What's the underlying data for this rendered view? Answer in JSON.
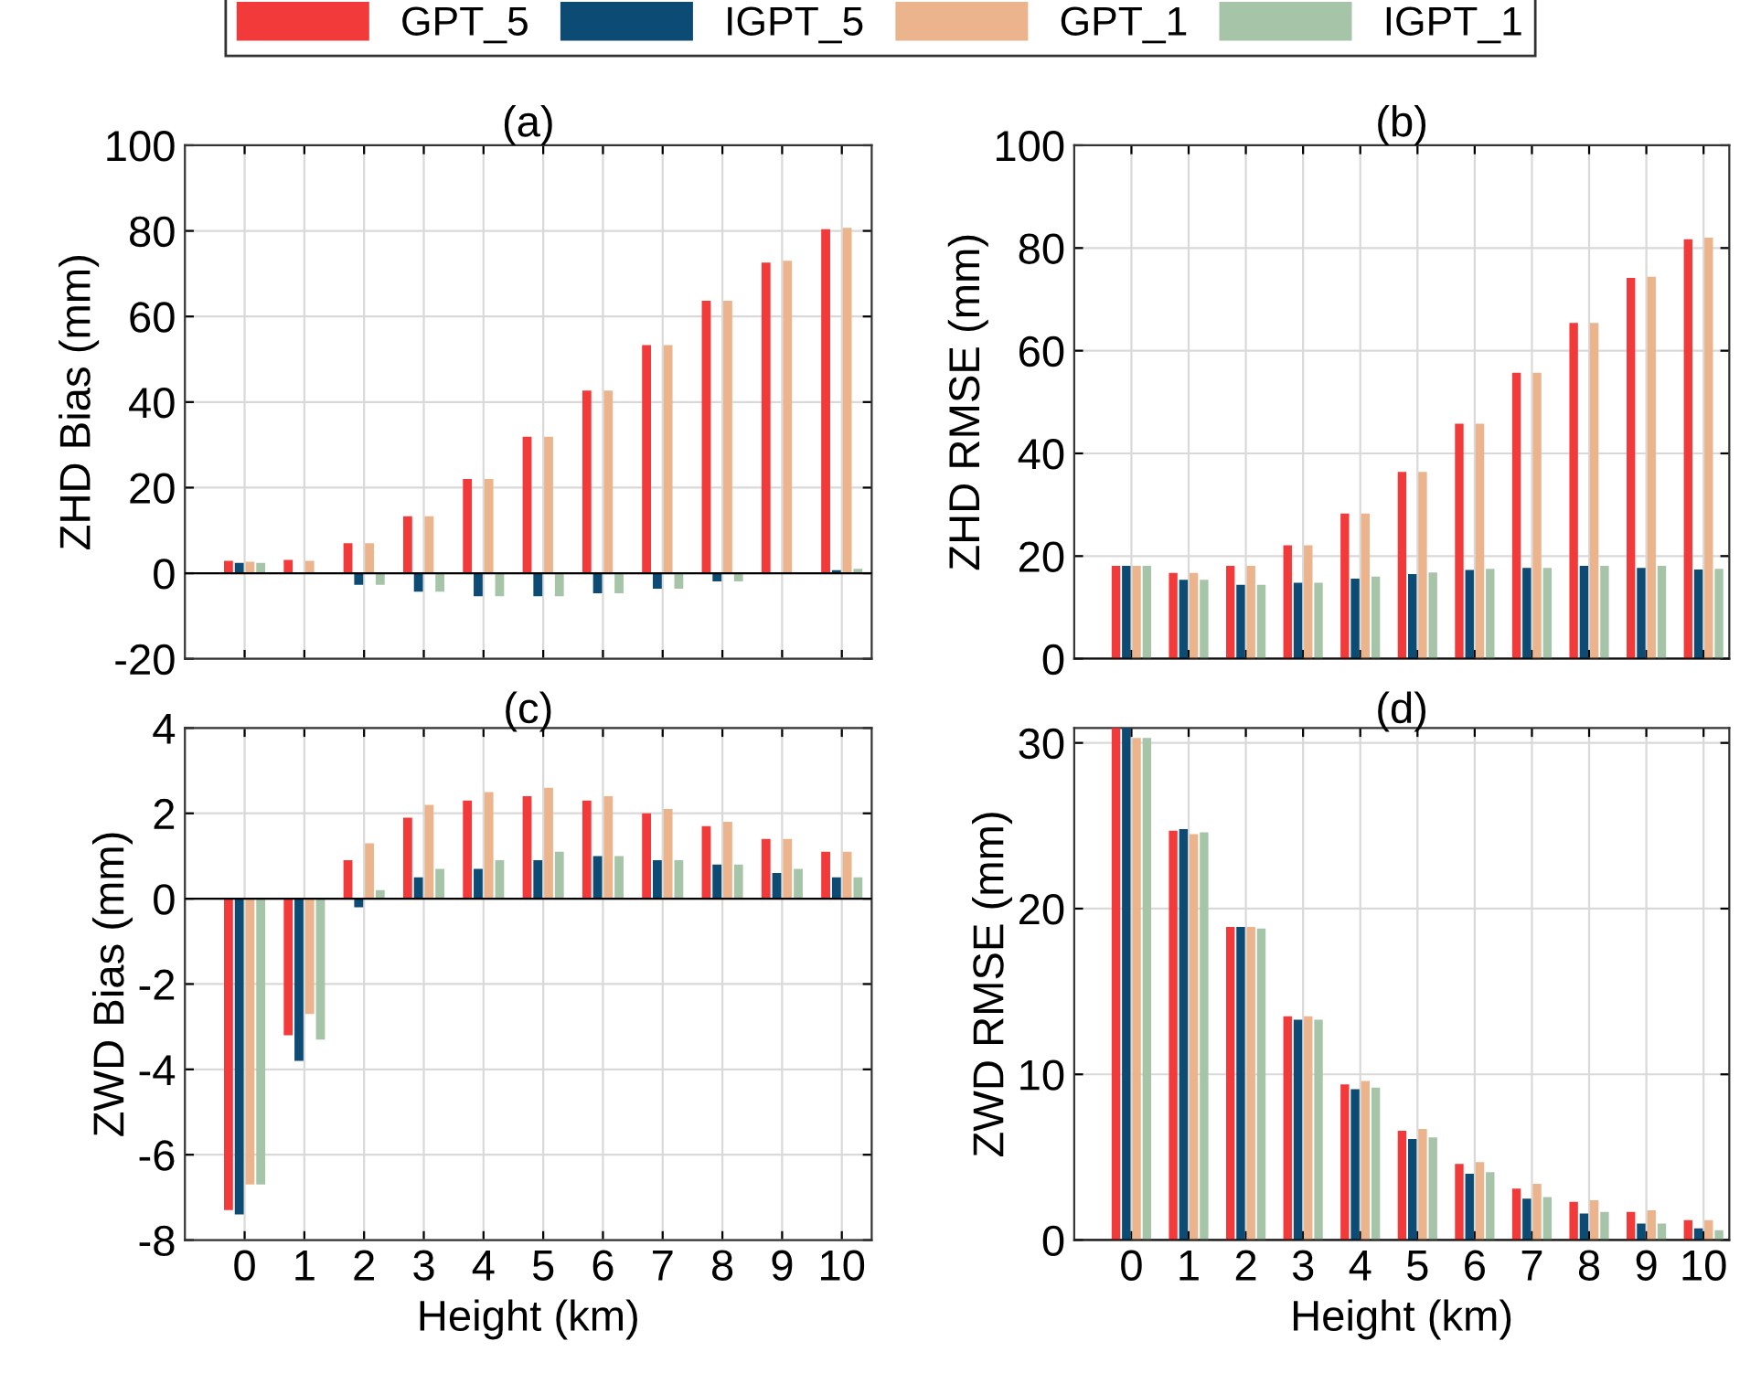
{
  "chart_data": [
    {
      "type": "bar",
      "title": "(a)",
      "ylabel": "ZHD Bias (mm)",
      "x": [
        0,
        1,
        2,
        3,
        4,
        5,
        6,
        7,
        8,
        9,
        10
      ],
      "xlim": [
        -1,
        10.5
      ],
      "xticks": [
        0,
        1,
        2,
        3,
        4,
        5,
        6,
        7,
        8,
        9,
        10
      ],
      "ylim": [
        -20,
        100
      ],
      "yticks": [
        -20,
        0,
        20,
        40,
        60,
        80,
        100
      ],
      "grid": true,
      "legend": "top",
      "tick_labels": "y",
      "series": [
        {
          "name": "GPT_5",
          "color": "#f23a3a",
          "values": [
            2.9,
            3.1,
            7,
            13.3,
            22,
            31.9,
            42.7,
            53.3,
            63.7,
            72.6,
            80.4
          ]
        },
        {
          "name": "IGPT_5",
          "color": "#0b4b74",
          "values": [
            2.4,
            0,
            -2.7,
            -4.3,
            -5.4,
            -5.4,
            -4.7,
            -3.6,
            -1.9,
            0,
            0.7
          ]
        },
        {
          "name": "GPT_1",
          "color": "#ebb48c",
          "values": [
            2.7,
            2.9,
            7,
            13.3,
            22,
            31.9,
            42.7,
            53.3,
            63.7,
            73,
            80.7
          ]
        },
        {
          "name": "IGPT_1",
          "color": "#a6c4a8",
          "values": [
            2.4,
            0,
            -2.7,
            -4.3,
            -5.4,
            -5.4,
            -4.7,
            -3.6,
            -1.9,
            0,
            1.0
          ]
        }
      ]
    },
    {
      "type": "bar",
      "title": "(b)",
      "ylabel": "ZHD RMSE (mm)",
      "x": [
        0,
        1,
        2,
        3,
        4,
        5,
        6,
        7,
        8,
        9,
        10
      ],
      "xlim": [
        -1,
        10.45
      ],
      "xticks": [
        0,
        1,
        2,
        3,
        4,
        5,
        6,
        7,
        8,
        9,
        10
      ],
      "ylim": [
        0,
        100
      ],
      "yticks": [
        0,
        20,
        40,
        60,
        80,
        100
      ],
      "grid": true,
      "tick_labels": "y",
      "series": [
        {
          "color": "#f23a3a",
          "values": [
            18.1,
            16.7,
            18.1,
            22.1,
            28.3,
            36.4,
            45.8,
            55.7,
            65.4,
            74.2,
            81.7
          ]
        },
        {
          "color": "#0b4b74",
          "values": [
            18.1,
            15.4,
            14.4,
            14.8,
            15.6,
            16.5,
            17.3,
            17.7,
            18.1,
            17.7,
            17.4
          ]
        },
        {
          "color": "#ebb48c",
          "values": [
            18.1,
            16.7,
            18.1,
            22.1,
            28.3,
            36.4,
            45.8,
            55.7,
            65.4,
            74.4,
            82.0
          ]
        },
        {
          "color": "#a6c4a8",
          "values": [
            18.1,
            15.4,
            14.4,
            14.8,
            16,
            16.8,
            17.5,
            17.7,
            18.1,
            18.1,
            17.5
          ]
        }
      ]
    },
    {
      "type": "bar",
      "title": "(c)",
      "xlabel": "Height (km)",
      "ylabel": "ZWD Bias (mm)",
      "x": [
        0,
        1,
        2,
        3,
        4,
        5,
        6,
        7,
        8,
        9,
        10
      ],
      "xlim": [
        -1,
        10.5
      ],
      "xticks": [
        0,
        1,
        2,
        3,
        4,
        5,
        6,
        7,
        8,
        9,
        10
      ],
      "ylim": [
        -8,
        4
      ],
      "yticks": [
        -8,
        -6,
        -4,
        -2,
        0,
        2,
        4
      ],
      "grid": true,
      "series": [
        {
          "color": "#f23a3a",
          "values": [
            -7.3,
            -3.2,
            0.9,
            1.9,
            2.3,
            2.4,
            2.3,
            2.0,
            1.7,
            1.4,
            1.1
          ]
        },
        {
          "color": "#0b4b74",
          "values": [
            -7.4,
            -3.8,
            -0.2,
            0.5,
            0.7,
            0.9,
            1.0,
            0.9,
            0.8,
            0.6,
            0.5
          ]
        },
        {
          "color": "#ebb48c",
          "values": [
            -6.7,
            -2.7,
            1.3,
            2.2,
            2.5,
            2.6,
            2.4,
            2.1,
            1.8,
            1.4,
            1.1
          ]
        },
        {
          "color": "#a6c4a8",
          "values": [
            -6.7,
            -3.3,
            0.2,
            0.7,
            0.9,
            1.1,
            1.0,
            0.9,
            0.8,
            0.7,
            0.5
          ]
        }
      ]
    },
    {
      "type": "bar",
      "title": "(d)",
      "xlabel": "Height (km)",
      "ylabel": "ZWD RMSE (mm)",
      "x": [
        0,
        1,
        2,
        3,
        4,
        5,
        6,
        7,
        8,
        9,
        10
      ],
      "xlim": [
        -1,
        10.45
      ],
      "xticks": [
        0,
        1,
        2,
        3,
        4,
        5,
        6,
        7,
        8,
        9,
        10
      ],
      "ylim": [
        0,
        30.9
      ],
      "yticks": [
        0,
        10,
        20,
        30
      ],
      "grid": true,
      "series": [
        {
          "color": "#f23a3a",
          "values": [
            30.9,
            24.7,
            18.9,
            13.5,
            9.4,
            6.6,
            4.6,
            3.1,
            2.3,
            1.7,
            1.2
          ]
        },
        {
          "color": "#0b4b74",
          "values": [
            30.9,
            24.8,
            18.9,
            13.3,
            9.1,
            6.1,
            4.0,
            2.5,
            1.6,
            1.0,
            0.7
          ]
        },
        {
          "color": "#ebb48c",
          "values": [
            30.3,
            24.5,
            18.9,
            13.5,
            9.6,
            6.7,
            4.7,
            3.4,
            2.4,
            1.8,
            1.2
          ]
        },
        {
          "color": "#a6c4a8",
          "values": [
            30.3,
            24.6,
            18.8,
            13.3,
            9.2,
            6.2,
            4.1,
            2.6,
            1.7,
            1.0,
            0.6
          ]
        }
      ]
    }
  ]
}
